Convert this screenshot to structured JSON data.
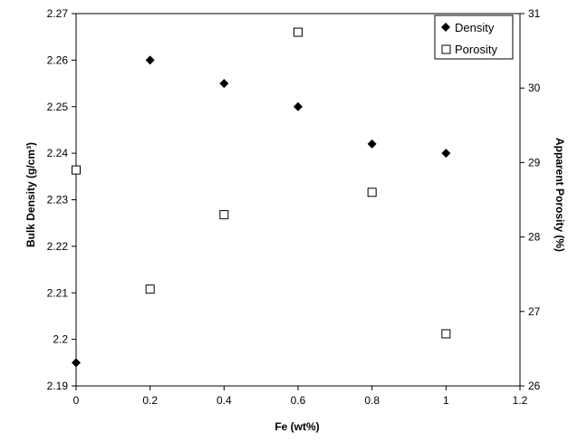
{
  "chart_data": {
    "type": "scatter",
    "xlabel": "Fe (wt%)",
    "ylabel_left": "Bulk Density (g/cm³)",
    "ylabel_right": "Apparent Porosity (%)",
    "xlim": [
      0,
      1.2
    ],
    "x_ticks": [
      "0",
      "0.2",
      "0.4",
      "0.6",
      "0.8",
      "1",
      "1.2"
    ],
    "ylim_left": [
      2.19,
      2.27
    ],
    "y_left_ticks": [
      "2.19",
      "2.2",
      "2.21",
      "2.22",
      "2.23",
      "2.24",
      "2.25",
      "2.26",
      "2.27"
    ],
    "ylim_right": [
      26,
      31
    ],
    "y_right_ticks": [
      "26",
      "27",
      "28",
      "29",
      "30",
      "31"
    ],
    "grid": false,
    "legend_position": "top-right",
    "series": [
      {
        "name": "Density",
        "axis": "left",
        "marker": "filled-diamond",
        "x": [
          0,
          0.2,
          0.4,
          0.6,
          0.8,
          1.0
        ],
        "y": [
          2.195,
          2.26,
          2.255,
          2.25,
          2.242,
          2.24
        ]
      },
      {
        "name": "Porosity",
        "axis": "right",
        "marker": "open-square",
        "x": [
          0,
          0.2,
          0.4,
          0.6,
          0.8,
          1.0
        ],
        "y": [
          28.9,
          27.3,
          28.3,
          30.75,
          28.6,
          26.7
        ]
      }
    ]
  }
}
